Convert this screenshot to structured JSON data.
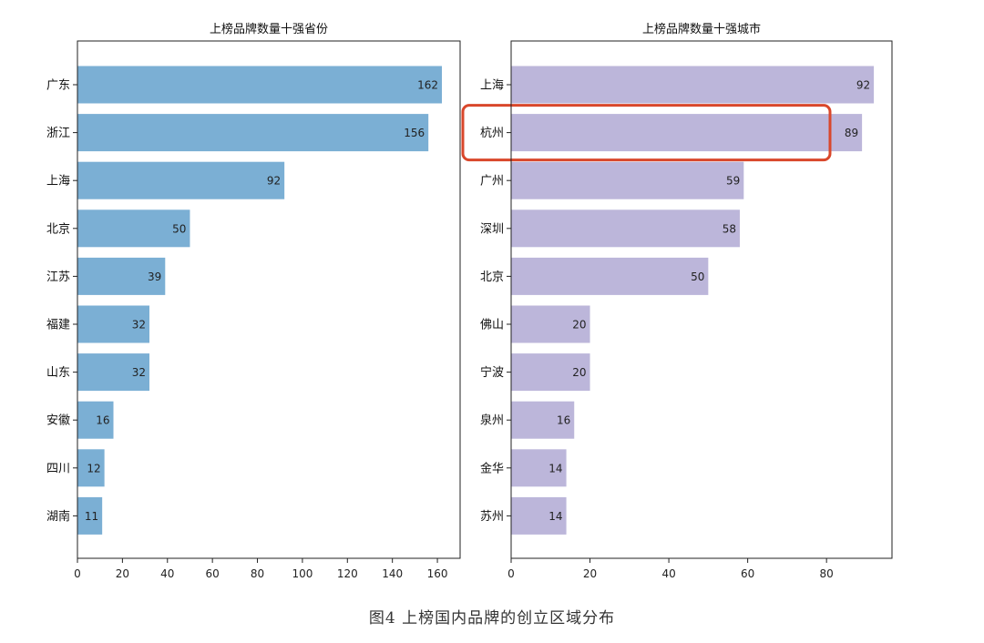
{
  "caption": "图4  上榜国内品牌的创立区域分布",
  "chart_data": [
    {
      "type": "bar",
      "orientation": "horizontal",
      "title": "上榜品牌数量十强省份",
      "categories": [
        "广东",
        "浙江",
        "上海",
        "北京",
        "江苏",
        "福建",
        "山东",
        "安徽",
        "四川",
        "湖南"
      ],
      "values": [
        162,
        156,
        92,
        50,
        39,
        32,
        32,
        16,
        12,
        11
      ],
      "xticks": [
        0,
        20,
        40,
        60,
        80,
        100,
        120,
        140,
        160
      ],
      "xlim": [
        0,
        170.1
      ],
      "xlabel": "",
      "ylabel": "",
      "bar_color": "#7bafd4",
      "grid": false,
      "highlight": null
    },
    {
      "type": "bar",
      "orientation": "horizontal",
      "title": "上榜品牌数量十强城市",
      "categories": [
        "上海",
        "杭州",
        "广州",
        "深圳",
        "北京",
        "佛山",
        "宁波",
        "泉州",
        "金华",
        "苏州"
      ],
      "values": [
        92,
        89,
        59,
        58,
        50,
        20,
        20,
        16,
        14,
        14
      ],
      "xticks": [
        0,
        20,
        40,
        60,
        80
      ],
      "xlim": [
        0,
        96.6
      ],
      "xlabel": "",
      "ylabel": "",
      "bar_color": "#bcb6da",
      "grid": false,
      "highlight": "杭州",
      "highlight_color": "#d9472b"
    }
  ]
}
